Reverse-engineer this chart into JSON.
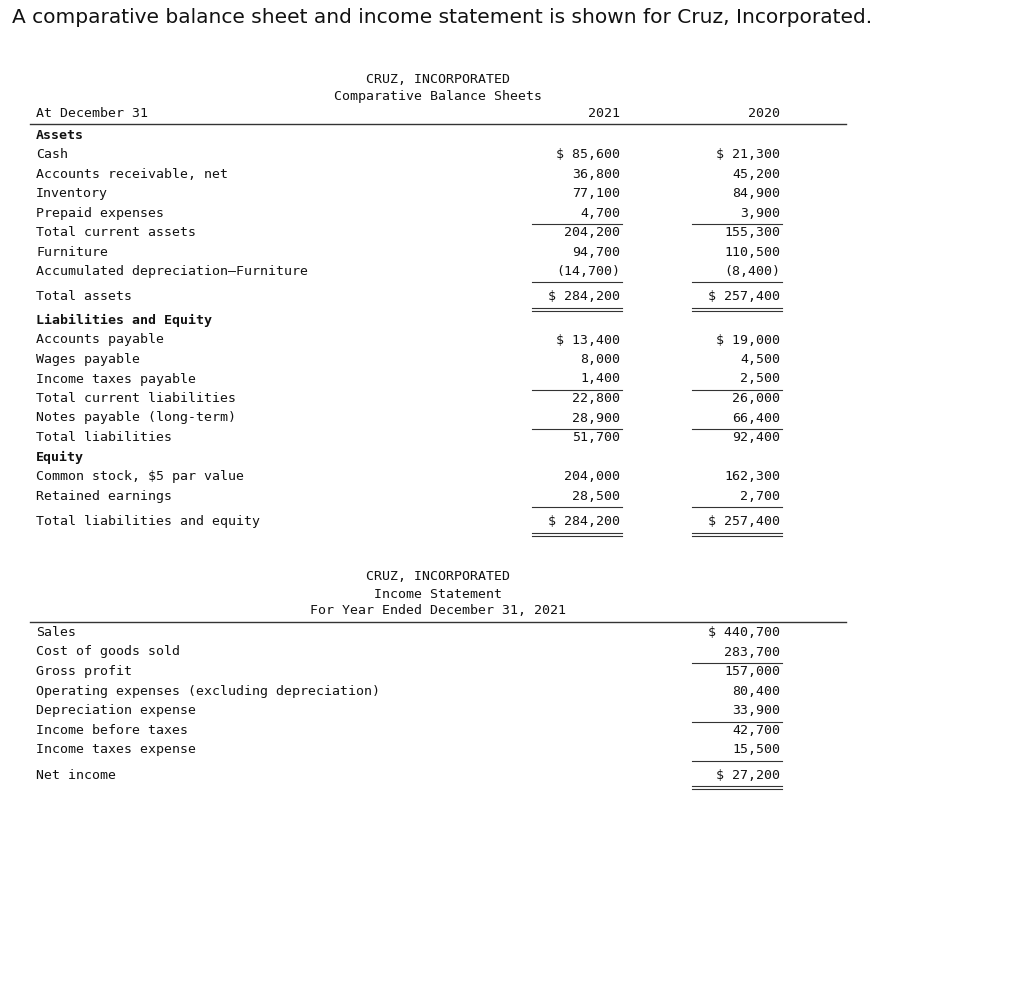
{
  "page_title": "A comparative balance sheet and income statement is shown for Cruz, Incorporated.",
  "bg_color": "#ffffff",
  "table_bg": "#d8dce8",
  "balance_sheet": {
    "title1": "CRUZ, INCORPORATED",
    "title2": "Comparative Balance Sheets",
    "col_header_label": "At December 31",
    "col_header_2021": "2021",
    "col_header_2020": "2020",
    "sections": [
      {
        "section_label": "Assets",
        "rows": [
          {
            "label": "Cash",
            "v2021": "$ 85,600",
            "v2020": "$ 21,300",
            "ul": false,
            "dbl": false
          },
          {
            "label": "Accounts receivable, net",
            "v2021": "36,800",
            "v2020": "45,200",
            "ul": false,
            "dbl": false
          },
          {
            "label": "Inventory",
            "v2021": "77,100",
            "v2020": "84,900",
            "ul": false,
            "dbl": false
          },
          {
            "label": "Prepaid expenses",
            "v2021": "4,700",
            "v2020": "3,900",
            "ul": true,
            "dbl": false
          },
          {
            "label": "Total current assets",
            "v2021": "204,200",
            "v2020": "155,300",
            "ul": false,
            "dbl": false
          },
          {
            "label": "Furniture",
            "v2021": "94,700",
            "v2020": "110,500",
            "ul": false,
            "dbl": false
          },
          {
            "label": "Accumulated depreciation–Furniture",
            "v2021": "(14,700)",
            "v2020": "(8,400)",
            "ul": true,
            "dbl": false
          },
          {
            "label": "Total assets",
            "v2021": "$ 284,200",
            "v2020": "$ 257,400",
            "ul": true,
            "dbl": true,
            "extra_top": true
          }
        ]
      },
      {
        "section_label": "Liabilities and Equity",
        "rows": [
          {
            "label": "Accounts payable",
            "v2021": "$ 13,400",
            "v2020": "$ 19,000",
            "ul": false,
            "dbl": false
          },
          {
            "label": "Wages payable",
            "v2021": "8,000",
            "v2020": "4,500",
            "ul": false,
            "dbl": false
          },
          {
            "label": "Income taxes payable",
            "v2021": "1,400",
            "v2020": "2,500",
            "ul": true,
            "dbl": false
          },
          {
            "label": "Total current liabilities",
            "v2021": "22,800",
            "v2020": "26,000",
            "ul": false,
            "dbl": false
          },
          {
            "label": "Notes payable (long-term)",
            "v2021": "28,900",
            "v2020": "66,400",
            "ul": true,
            "dbl": false
          },
          {
            "label": "Total liabilities",
            "v2021": "51,700",
            "v2020": "92,400",
            "ul": false,
            "dbl": false
          }
        ]
      },
      {
        "section_label": "Equity",
        "rows": [
          {
            "label": "Common stock, $5 par value",
            "v2021": "204,000",
            "v2020": "162,300",
            "ul": false,
            "dbl": false
          },
          {
            "label": "Retained earnings",
            "v2021": "28,500",
            "v2020": "2,700",
            "ul": true,
            "dbl": false
          },
          {
            "label": "Total liabilities and equity",
            "v2021": "$ 284,200",
            "v2020": "$ 257,400",
            "ul": true,
            "dbl": true,
            "extra_top": true
          }
        ]
      }
    ]
  },
  "income_statement": {
    "title1": "CRUZ, INCORPORATED",
    "title2": "Income Statement",
    "title3": "For Year Ended December 31, 2021",
    "rows": [
      {
        "label": "Sales",
        "value": "$ 440,700",
        "ul": false,
        "dbl": false
      },
      {
        "label": "Cost of goods sold",
        "value": "283,700",
        "ul": true,
        "dbl": false
      },
      {
        "label": "Gross profit",
        "value": "157,000",
        "ul": false,
        "dbl": false
      },
      {
        "label": "Operating expenses (excluding depreciation)",
        "value": "80,400",
        "ul": false,
        "dbl": false
      },
      {
        "label": "Depreciation expense",
        "value": "33,900",
        "ul": true,
        "dbl": false
      },
      {
        "label": "Income before taxes",
        "value": "42,700",
        "ul": false,
        "dbl": false
      },
      {
        "label": "Income taxes expense",
        "value": "15,500",
        "ul": true,
        "dbl": false
      },
      {
        "label": "Net income",
        "value": "$ 27,200",
        "ul": true,
        "dbl": true,
        "extra_top": true
      }
    ]
  }
}
